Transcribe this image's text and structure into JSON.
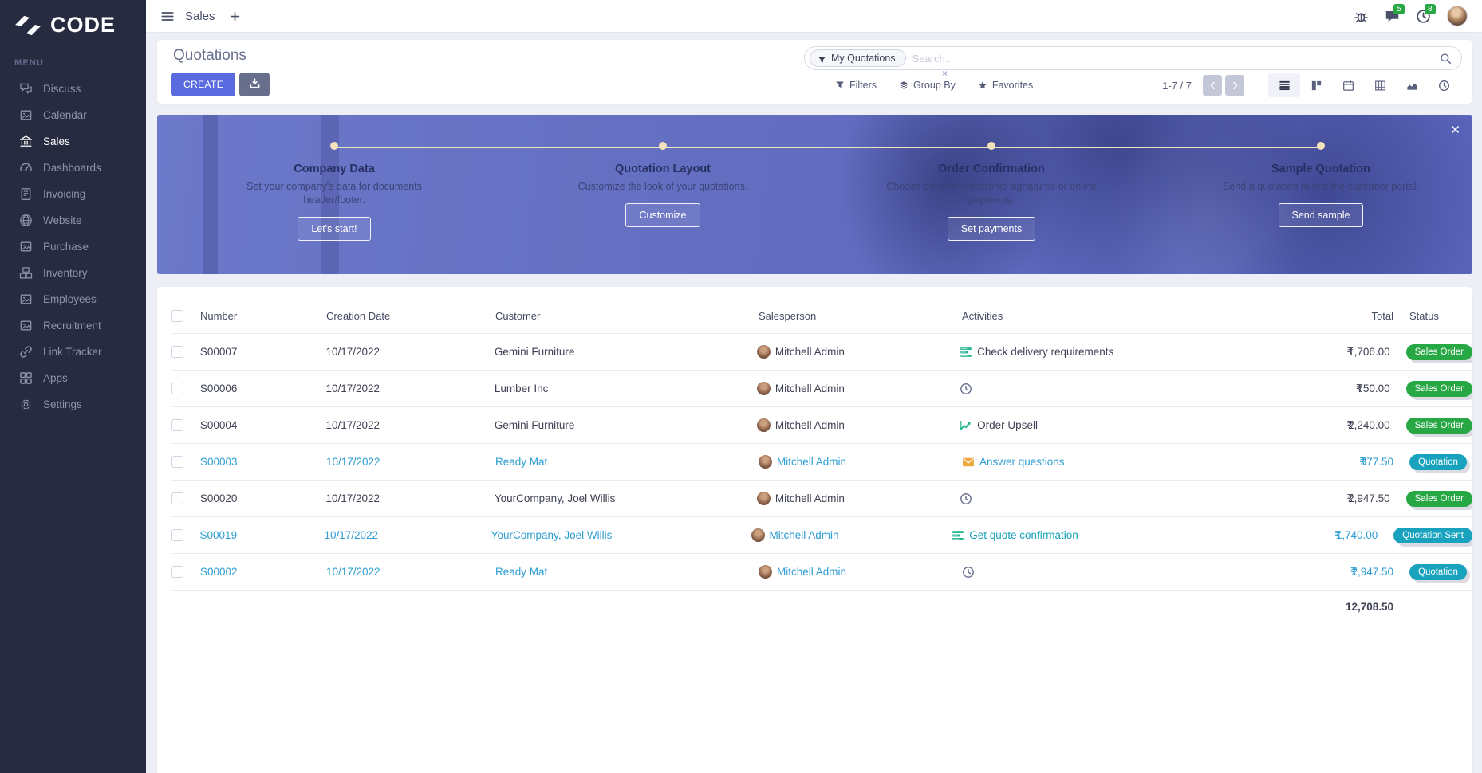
{
  "colors": {
    "accent": "#5a6be0",
    "sidebar_bg": "#272b3f",
    "status_green": "#28a745",
    "status_teal": "#18a2bd",
    "activity_green": "#22b491",
    "envelope_orange": "#f0a93f",
    "link_blue": "#2e9dd3",
    "banner_blue": "#6570c2",
    "timeline_cream": "#f2e3bb"
  },
  "sidebar": {
    "logo_text": "CODE",
    "menu_label": "MENU",
    "items": [
      {
        "label": "Discuss",
        "icon": "discuss-icon",
        "active": false
      },
      {
        "label": "Calendar",
        "icon": "broken-image-icon",
        "active": false
      },
      {
        "label": "Sales",
        "icon": "sales-icon",
        "active": true
      },
      {
        "label": "Dashboards",
        "icon": "dashboards-icon",
        "active": false
      },
      {
        "label": "Invoicing",
        "icon": "invoicing-icon",
        "active": false
      },
      {
        "label": "Website",
        "icon": "website-icon",
        "active": false
      },
      {
        "label": "Purchase",
        "icon": "broken-image-icon",
        "active": false
      },
      {
        "label": "Inventory",
        "icon": "inventory-icon",
        "active": false
      },
      {
        "label": "Employees",
        "icon": "broken-image-icon",
        "active": false
      },
      {
        "label": "Recruitment",
        "icon": "broken-image-icon",
        "active": false
      },
      {
        "label": "Link Tracker",
        "icon": "link-icon",
        "active": false
      },
      {
        "label": "Apps",
        "icon": "apps-icon",
        "active": false
      },
      {
        "label": "Settings",
        "icon": "settings-icon",
        "active": false
      }
    ]
  },
  "topbar": {
    "app_title": "Sales",
    "add_tab_label": "+",
    "messages_badge": "5",
    "activities_badge": "8"
  },
  "control_panel": {
    "title": "Quotations",
    "create_label": "CREATE",
    "search": {
      "facet": "My Quotations",
      "facet_remove": "×",
      "placeholder": "Search..."
    },
    "filters_label": "Filters",
    "group_by_label": "Group By",
    "favorites_label": "Favorites",
    "pager_text": "1-7 / 7",
    "views": [
      {
        "name": "list-view-icon",
        "active": true
      },
      {
        "name": "kanban-view-icon",
        "active": false
      },
      {
        "name": "calendar-view-icon",
        "active": false
      },
      {
        "name": "pivot-view-icon",
        "active": false
      },
      {
        "name": "graph-view-icon",
        "active": false
      },
      {
        "name": "activity-view-icon",
        "active": false
      }
    ]
  },
  "banner": {
    "close_label": "✕",
    "steps": [
      {
        "title": "Company Data",
        "desc": "Set your company's data for documents header/footer.",
        "button": "Let's start!"
      },
      {
        "title": "Quotation Layout",
        "desc": "Customize the look of your quotations.",
        "button": "Customize"
      },
      {
        "title": "Order Confirmation",
        "desc": "Choose between electronic signatures or online payments.",
        "button": "Set payments"
      },
      {
        "title": "Sample Quotation",
        "desc": "Send a quotation to test the customer portal.",
        "button": "Send sample"
      }
    ]
  },
  "table": {
    "columns": [
      "Number",
      "Creation Date",
      "Customer",
      "Salesperson",
      "Activities",
      "Total",
      "Status"
    ],
    "currency": "₹",
    "rows": [
      {
        "number": "S00007",
        "creation_date": "10/17/2022",
        "customer": "Gemini Furniture",
        "salesperson": "Mitchell Admin",
        "activity": {
          "icon": "tasks-activity-icon",
          "label": "Check delivery requirements",
          "label_color": "default"
        },
        "total": "1,706.00",
        "status": "Sales Order",
        "status_color": "green",
        "highlighted": false
      },
      {
        "number": "S00006",
        "creation_date": "10/17/2022",
        "customer": "Lumber Inc",
        "salesperson": "Mitchell Admin",
        "activity": {
          "icon": "clock-activity-icon",
          "label": "",
          "label_color": "default"
        },
        "total": "750.00",
        "status": "Sales Order",
        "status_color": "green",
        "highlighted": false
      },
      {
        "number": "S00004",
        "creation_date": "10/17/2022",
        "customer": "Gemini Furniture",
        "salesperson": "Mitchell Admin",
        "activity": {
          "icon": "chart-activity-icon",
          "label": "Order Upsell",
          "label_color": "default"
        },
        "total": "2,240.00",
        "status": "Sales Order",
        "status_color": "green",
        "highlighted": false
      },
      {
        "number": "S00003",
        "creation_date": "10/17/2022",
        "customer": "Ready Mat",
        "salesperson": "Mitchell Admin",
        "activity": {
          "icon": "envelope-activity-icon",
          "label": "Answer questions",
          "label_color": "blue"
        },
        "total": "377.50",
        "status": "Quotation",
        "status_color": "teal",
        "highlighted": true
      },
      {
        "number": "S00020",
        "creation_date": "10/17/2022",
        "customer": "YourCompany, Joel Willis",
        "salesperson": "Mitchell Admin",
        "activity": {
          "icon": "clock-activity-icon",
          "label": "",
          "label_color": "default"
        },
        "total": "2,947.50",
        "status": "Sales Order",
        "status_color": "green",
        "highlighted": false
      },
      {
        "number": "S00019",
        "creation_date": "10/17/2022",
        "customer": "YourCompany, Joel Willis",
        "salesperson": "Mitchell Admin",
        "activity": {
          "icon": "tasks-activity-icon",
          "label": "Get quote confirmation",
          "label_color": "teal"
        },
        "total": "1,740.00",
        "status": "Quotation Sent",
        "status_color": "teal",
        "highlighted": true
      },
      {
        "number": "S00002",
        "creation_date": "10/17/2022",
        "customer": "Ready Mat",
        "salesperson": "Mitchell Admin",
        "activity": {
          "icon": "clock-activity-icon",
          "label": "",
          "label_color": "default"
        },
        "total": "2,947.50",
        "status": "Quotation",
        "status_color": "teal",
        "highlighted": true
      }
    ],
    "footer_total": "12,708.50"
  }
}
